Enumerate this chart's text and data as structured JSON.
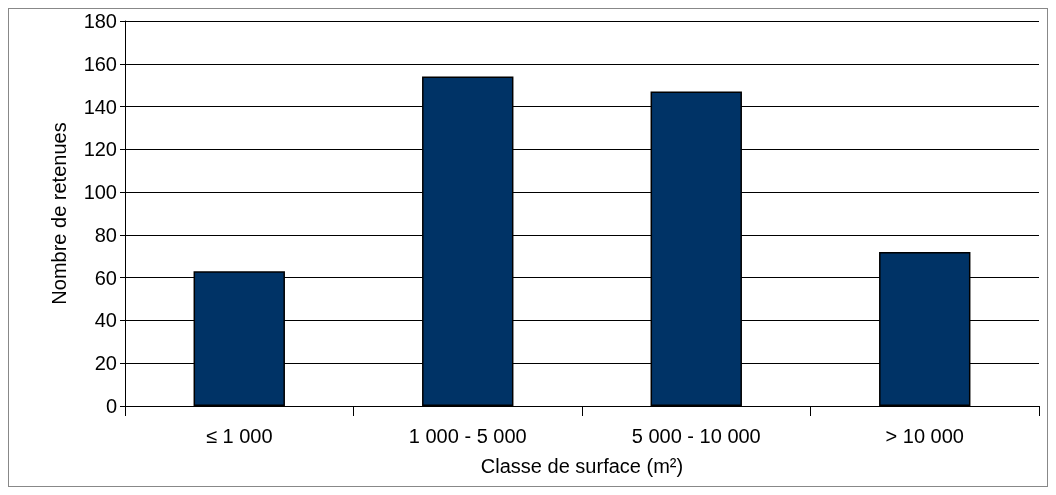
{
  "chart_data": {
    "type": "bar",
    "xlabel": "Classe de surface (m²)",
    "ylabel": "Nombre de retenues",
    "categories": [
      "≤ 1 000",
      "1 000 - 5 000",
      "5 000 - 10 000",
      "> 10 000"
    ],
    "values": [
      63,
      154,
      147,
      72
    ],
    "color": "#003366",
    "ylim": [
      0,
      180
    ],
    "yticks": [
      0,
      20,
      40,
      60,
      80,
      100,
      120,
      140,
      160,
      180
    ],
    "grid": "y"
  }
}
